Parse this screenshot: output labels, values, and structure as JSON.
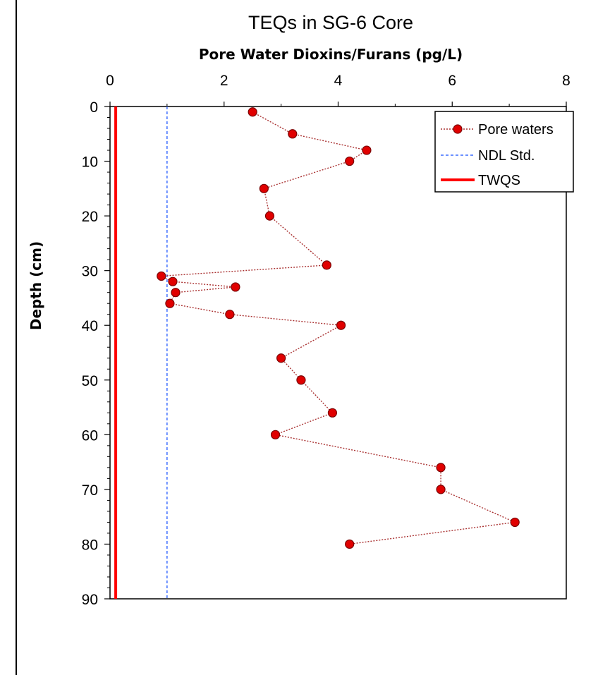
{
  "chart_data": {
    "type": "scatter",
    "title": "TEQs in SG-6 Core",
    "xlabel": "Pore Water Dioxins/Furans (pg/L)",
    "ylabel": "Depth (cm)",
    "xlim": [
      0,
      8
    ],
    "ylim": [
      0,
      90
    ],
    "x_axis_position": "top",
    "y_axis_inverted": true,
    "x_ticks": [
      "0",
      "2",
      "4",
      "6",
      "8"
    ],
    "y_ticks": [
      "0",
      "10",
      "20",
      "30",
      "40",
      "50",
      "60",
      "70",
      "80",
      "90"
    ],
    "grid": false,
    "legend_position": "top-right",
    "series": [
      {
        "name": "Pore waters",
        "color": "#e00000",
        "line_style": "dotted",
        "marker": "circle",
        "points": [
          {
            "x": 2.5,
            "y": 1
          },
          {
            "x": 3.2,
            "y": 5
          },
          {
            "x": 4.5,
            "y": 8
          },
          {
            "x": 4.2,
            "y": 10
          },
          {
            "x": 2.7,
            "y": 15
          },
          {
            "x": 2.8,
            "y": 20
          },
          {
            "x": 3.8,
            "y": 29
          },
          {
            "x": 0.9,
            "y": 31
          },
          {
            "x": 1.1,
            "y": 32
          },
          {
            "x": 2.2,
            "y": 33
          },
          {
            "x": 1.15,
            "y": 34
          },
          {
            "x": 1.05,
            "y": 36
          },
          {
            "x": 2.1,
            "y": 38
          },
          {
            "x": 4.05,
            "y": 40
          },
          {
            "x": 3.0,
            "y": 46
          },
          {
            "x": 3.35,
            "y": 50
          },
          {
            "x": 3.9,
            "y": 56
          },
          {
            "x": 2.9,
            "y": 60
          },
          {
            "x": 5.8,
            "y": 66
          },
          {
            "x": 5.8,
            "y": 70
          },
          {
            "x": 7.1,
            "y": 76
          },
          {
            "x": 4.2,
            "y": 80
          }
        ]
      },
      {
        "name": "NDL Std.",
        "color": "#3a6bff",
        "line_style": "dashed",
        "marker": "none",
        "points": [
          {
            "x": 1.0,
            "y": 0
          },
          {
            "x": 1.0,
            "y": 90
          }
        ]
      },
      {
        "name": "TWQS",
        "color": "#ff0000",
        "line_style": "solid",
        "marker": "none",
        "points": [
          {
            "x": 0.1,
            "y": 0
          },
          {
            "x": 0.1,
            "y": 90
          }
        ]
      }
    ]
  }
}
